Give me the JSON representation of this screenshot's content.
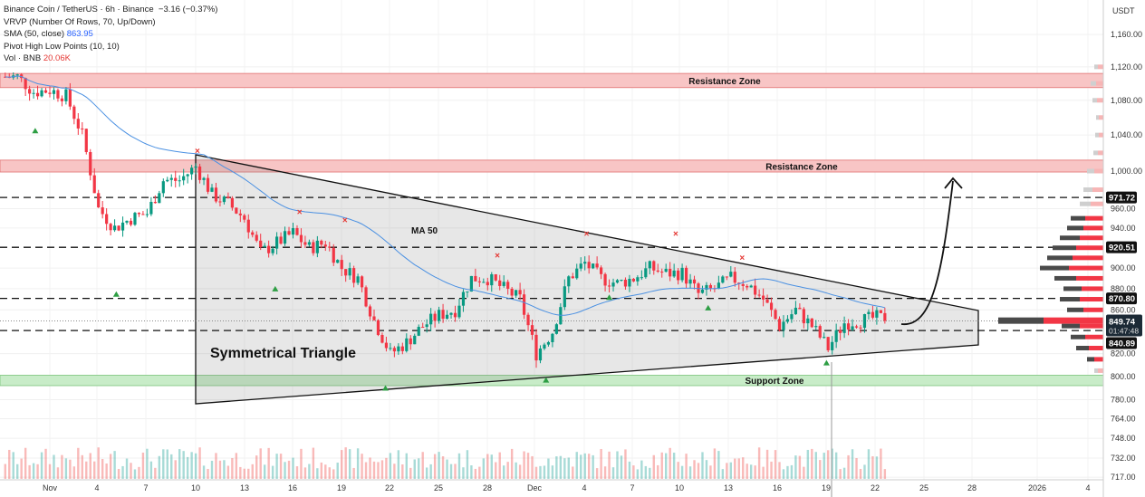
{
  "legend": {
    "symbol_line": "Binance Coin / TetherUS · 6h · Binance",
    "change": "−3.16 (−0.37%)",
    "vrvp": "VRVP (Number Of Rows, 70, Up/Down)",
    "sma_label": "SMA (50, close)",
    "sma_value": "863.95",
    "pivots": "Pivot High Low Points (10, 10)",
    "vol_label": "Vol · BNB",
    "vol_value": "20.06K"
  },
  "axis": {
    "currency": "USDT",
    "scale": "log",
    "price_ticks": [
      1160,
      1120,
      1080,
      1040,
      1000,
      960,
      940,
      900,
      880,
      860,
      820,
      800,
      780,
      764,
      748,
      732,
      717
    ],
    "price_tick_labels": [
      "1,160.00",
      "1,120.00",
      "1,080.00",
      "1,040.00",
      "1,000.00",
      "960.00",
      "940.00",
      "900.00",
      "880.00",
      "860.00",
      "820.00",
      "800.00",
      "780.00",
      "764.00",
      "748.00",
      "732.00",
      "717.00"
    ],
    "time_labels": [
      "Nov",
      "4",
      "7",
      "10",
      "13",
      "16",
      "19",
      "22",
      "25",
      "28",
      "Dec",
      "4",
      "7",
      "10",
      "13",
      "16",
      "19",
      "22",
      "25",
      "28",
      "2026",
      "4"
    ]
  },
  "levels": [
    {
      "price": 971.72,
      "label": "971.72"
    },
    {
      "price": 920.51,
      "label": "920.51"
    },
    {
      "price": 870.8,
      "label": "870.80"
    },
    {
      "price": 840.89,
      "label": "840.89"
    }
  ],
  "last_price": {
    "price": 849.74,
    "label": "849.74",
    "countdown": "01:47:48"
  },
  "zones": [
    {
      "label": "Resistance Zone",
      "top": 1112,
      "bottom": 1095,
      "type": "resistance"
    },
    {
      "label": "Resistance Zone",
      "top": 1012,
      "bottom": 999,
      "type": "resistance"
    },
    {
      "label": "Support Zone",
      "top": 801,
      "bottom": 792,
      "type": "support"
    }
  ],
  "annotations": {
    "pattern": "Symmetrical Triangle",
    "ma": "MA 50"
  },
  "colors": {
    "up": "#26a69a",
    "down": "#ef5350",
    "candle_up": "#089981",
    "candle_down": "#f23645",
    "sma": "#4a90e2",
    "resistance": "#f8c5c5",
    "support": "#c8ecc8",
    "pivot_low": "#2e9e44",
    "pivot_high": "#e53935"
  },
  "daily_closes": [
    1108,
    1108,
    1090,
    1092,
    1085,
    1040,
    960,
    940,
    950,
    955,
    990,
    990,
    1005,
    975,
    965,
    950,
    915,
    925,
    935,
    920,
    925,
    900,
    890,
    850,
    820,
    830,
    845,
    855,
    860,
    890,
    890,
    880,
    870,
    820,
    840,
    890,
    905,
    890,
    885,
    890,
    900,
    895,
    895,
    875,
    880,
    890,
    885,
    870,
    845,
    860,
    845,
    825,
    848,
    850,
    853,
    849.74
  ],
  "volume_profile": [
    {
      "price": 1120,
      "up": 4,
      "down": 6
    },
    {
      "price": 1100,
      "up": 6,
      "down": 8
    },
    {
      "price": 1080,
      "up": 5,
      "down": 7
    },
    {
      "price": 1060,
      "up": 3,
      "down": 5
    },
    {
      "price": 1040,
      "up": 4,
      "down": 5
    },
    {
      "price": 1020,
      "up": 5,
      "down": 6
    },
    {
      "price": 1000,
      "up": 8,
      "down": 10
    },
    {
      "price": 980,
      "up": 10,
      "down": 12
    },
    {
      "price": 965,
      "up": 12,
      "down": 14
    },
    {
      "price": 950,
      "up": 16,
      "down": 20
    },
    {
      "price": 940,
      "up": 18,
      "down": 22
    },
    {
      "price": 930,
      "up": 22,
      "down": 26
    },
    {
      "price": 920,
      "up": 26,
      "down": 30
    },
    {
      "price": 910,
      "up": 28,
      "down": 34
    },
    {
      "price": 900,
      "up": 32,
      "down": 38
    },
    {
      "price": 890,
      "up": 24,
      "down": 30
    },
    {
      "price": 880,
      "up": 20,
      "down": 24
    },
    {
      "price": 870,
      "up": 22,
      "down": 26
    },
    {
      "price": 860,
      "up": 18,
      "down": 22
    },
    {
      "price": 850,
      "up": 50,
      "down": 66
    },
    {
      "price": 845,
      "up": 20,
      "down": 26
    },
    {
      "price": 835,
      "up": 16,
      "down": 20
    },
    {
      "price": 825,
      "up": 14,
      "down": 16
    },
    {
      "price": 815,
      "up": 8,
      "down": 10
    },
    {
      "price": 805,
      "up": 4,
      "down": 6
    }
  ],
  "pivots_low": [
    {
      "day": 2.1,
      "price": 1045
    },
    {
      "day": 7.1,
      "price": 875
    },
    {
      "day": 16.9,
      "price": 880
    },
    {
      "day": 23.7,
      "price": 790
    },
    {
      "day": 33.6,
      "price": 797
    },
    {
      "day": 37.5,
      "price": 872
    },
    {
      "day": 43.6,
      "price": 862
    },
    {
      "day": 50.9,
      "price": 812
    }
  ],
  "pivots_high": [
    {
      "day": 12.1,
      "price": 1022
    },
    {
      "day": 18.4,
      "price": 956
    },
    {
      "day": 21.2,
      "price": 948
    },
    {
      "day": 30.6,
      "price": 912
    },
    {
      "day": 36.1,
      "price": 934
    },
    {
      "day": 41.6,
      "price": 934
    },
    {
      "day": 45.7,
      "price": 910
    }
  ]
}
